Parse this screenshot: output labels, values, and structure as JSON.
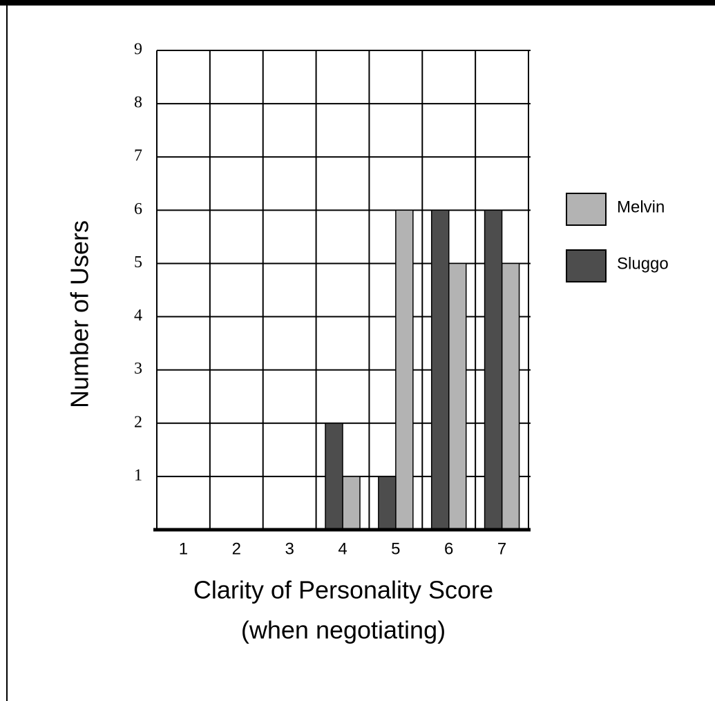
{
  "chart_data": {
    "type": "bar",
    "ylabel": "Number of Users",
    "xlabel": [
      "Clarity of Personality Score",
      "(when negotiating)"
    ],
    "categories": [
      "1",
      "2",
      "3",
      "4",
      "5",
      "6",
      "7"
    ],
    "series": [
      {
        "name": "Melvin",
        "color": "#b3b3b3",
        "values": [
          0,
          0,
          0,
          1,
          6,
          5,
          5
        ]
      },
      {
        "name": "Sluggo",
        "color": "#4d4d4d",
        "values": [
          0,
          0,
          0,
          2,
          1,
          6,
          6
        ]
      }
    ],
    "ylim": [
      0,
      9
    ],
    "yticks": [
      1,
      2,
      3,
      4,
      5,
      6,
      7,
      8,
      9
    ],
    "grid": true,
    "legend": "right"
  }
}
